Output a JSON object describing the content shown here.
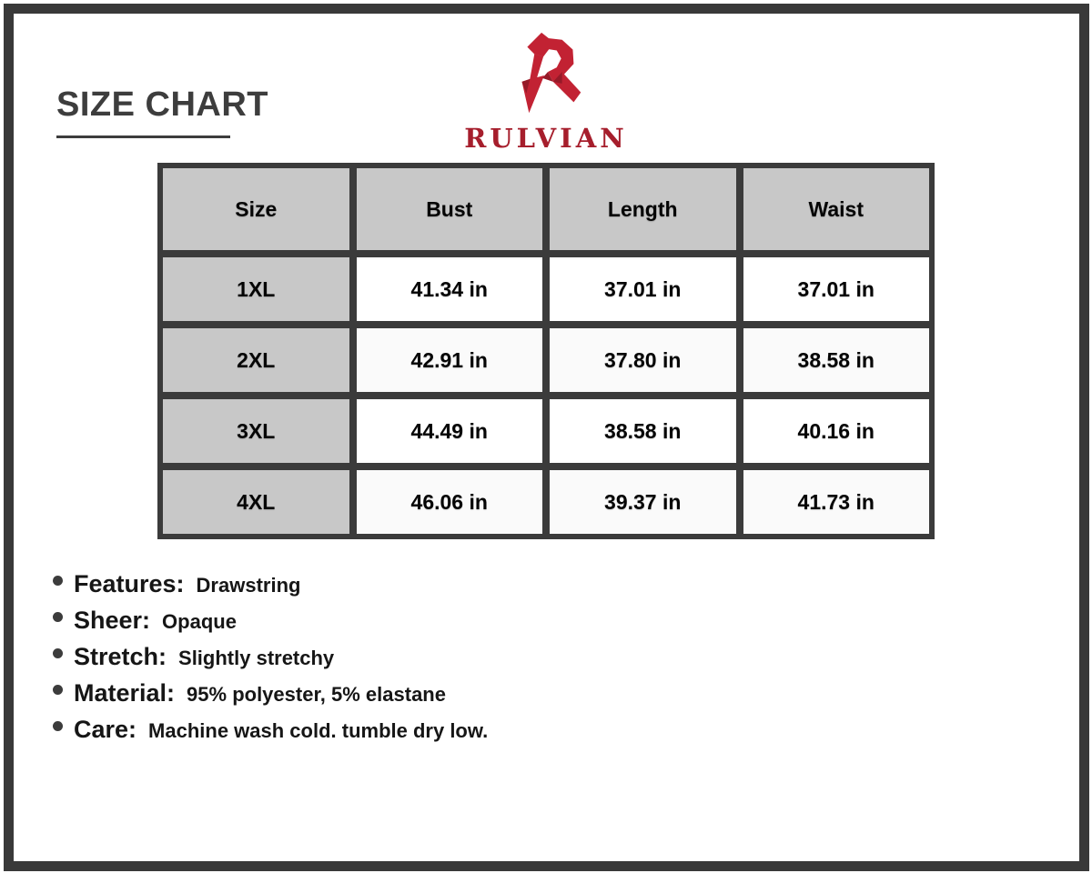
{
  "page": {
    "title": "SIZE CHART"
  },
  "brand": {
    "name": "RULVIAN",
    "logo_red": "#c22233",
    "logo_dark_red": "#951a28",
    "wordmark_color": "#a61e2c"
  },
  "size_table": {
    "columns": [
      "Size",
      "Bust",
      "Length",
      "Waist"
    ],
    "rows": [
      {
        "size": "1XL",
        "bust": "41.34 in",
        "length": "37.01 in",
        "waist": "37.01 in"
      },
      {
        "size": "2XL",
        "bust": "42.91 in",
        "length": "37.80 in",
        "waist": "38.58 in"
      },
      {
        "size": "3XL",
        "bust": "44.49 in",
        "length": "38.58 in",
        "waist": "40.16 in"
      },
      {
        "size": "4XL",
        "bust": "46.06 in",
        "length": "39.37 in",
        "waist": "41.73 in"
      }
    ],
    "unit": "in"
  },
  "details": [
    {
      "label": "Features:",
      "value": "Drawstring"
    },
    {
      "label": "Sheer:",
      "value": "Opaque"
    },
    {
      "label": "Stretch:",
      "value": "Slightly stretchy"
    },
    {
      "label": "Material:",
      "value": "95% polyester, 5% elastane"
    },
    {
      "label": "Care:",
      "value": "Machine wash cold. tumble dry low."
    }
  ],
  "colors": {
    "frame": "#393939",
    "grid": "#3b3b3b",
    "header_cell": "#c8c8c8",
    "title_text": "#3d3d3d",
    "body_text": "#161616"
  }
}
